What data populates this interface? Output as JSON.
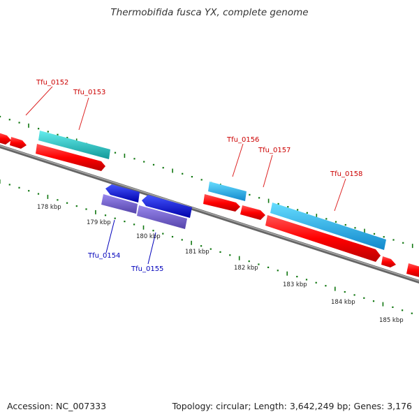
{
  "title": "Thermobifida fusca YX, complete genome",
  "footer": {
    "accession": "Accession: NC_007333",
    "summary": "Topology: circular; Length: 3,642,249 bp; Genes: 3,176"
  },
  "colors": {
    "forward_cds": "#ff0000",
    "forward_rna_teal": "#22cccc",
    "forward_rna_blue": "#33bbee",
    "reverse_cds": "#1111ee",
    "reverse_rna": "#7766cc",
    "forward_label": "#cc0000",
    "reverse_label": "#0000bb",
    "backbone": "#888888",
    "ticks": "#117711"
  },
  "scale_labels": [
    "178 kbp",
    "179 kbp",
    "180 kbp",
    "181 kbp",
    "182 kbp",
    "183 kbp",
    "184 kbp",
    "185 kbp"
  ],
  "genes": [
    {
      "id": "Tfu_0152",
      "strand": "forward"
    },
    {
      "id": "Tfu_0153",
      "strand": "forward"
    },
    {
      "id": "Tfu_0154",
      "strand": "reverse"
    },
    {
      "id": "Tfu_0155",
      "strand": "reverse"
    },
    {
      "id": "Tfu_0156",
      "strand": "forward"
    },
    {
      "id": "Tfu_0157",
      "strand": "forward"
    },
    {
      "id": "Tfu_0158",
      "strand": "forward"
    }
  ]
}
